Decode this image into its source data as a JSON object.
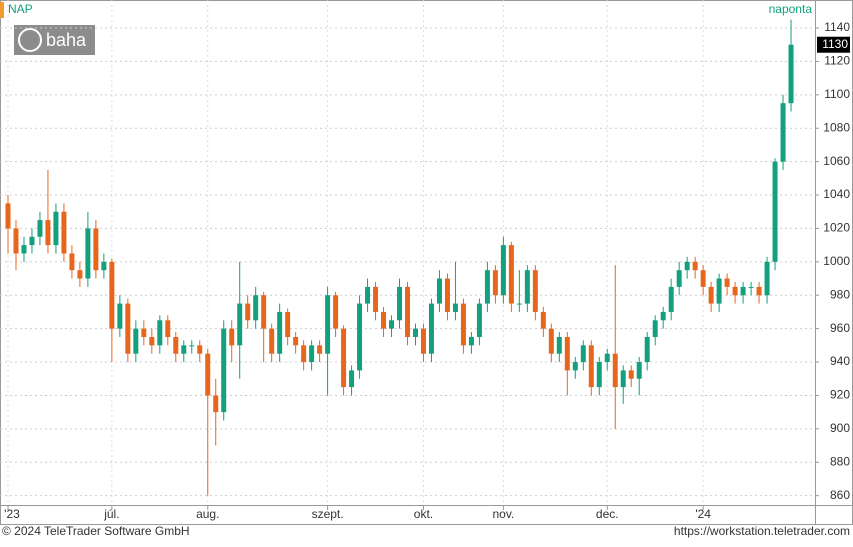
{
  "chart_data": {
    "type": "candlestick",
    "title": "NAP",
    "interval": "naponta",
    "logo": "baha",
    "copyright": "© 2024 TeleTrader Software GmbH",
    "url": "https://workstation.teletrader.com",
    "up_color": "#13a07e",
    "down_color": "#e8661c",
    "grid": true,
    "ylim": [
      855,
      1146
    ],
    "yticks": [
      860,
      880,
      900,
      920,
      940,
      960,
      980,
      1000,
      1020,
      1040,
      1060,
      1080,
      1100,
      1120,
      1140
    ],
    "xlim": [
      -1,
      101
    ],
    "xticks": [
      {
        "value": 0,
        "label": "'23"
      },
      {
        "value": 13,
        "label": "júl."
      },
      {
        "value": 25,
        "label": "aug."
      },
      {
        "value": 40,
        "label": "szept."
      },
      {
        "value": 52,
        "label": "okt."
      },
      {
        "value": 62,
        "label": "nov."
      },
      {
        "value": 75,
        "label": "dec."
      },
      {
        "value": 87,
        "label": "'24"
      }
    ],
    "open": [
      1035,
      1020,
      1005,
      1010,
      1015,
      1025,
      1010,
      1030,
      1005,
      995,
      990,
      1020,
      995,
      1000,
      960,
      975,
      945,
      960,
      955,
      950,
      965,
      955,
      945,
      950,
      950,
      945,
      920,
      910,
      960,
      950,
      975,
      965,
      980,
      960,
      945,
      970,
      955,
      950,
      940,
      950,
      945,
      980,
      960,
      925,
      935,
      975,
      985,
      970,
      960,
      965,
      985,
      955,
      960,
      945,
      975,
      990,
      970,
      975,
      950,
      955,
      975,
      995,
      980,
      1010,
      975,
      975,
      995,
      970,
      960,
      945,
      955,
      935,
      940,
      950,
      925,
      940,
      945,
      925,
      935,
      930,
      940,
      955,
      965,
      970,
      985,
      995,
      1000,
      995,
      985,
      975,
      990,
      985,
      980,
      985,
      985,
      980,
      1000,
      1060,
      1095
    ],
    "high": [
      1040,
      1025,
      1015,
      1020,
      1030,
      1055,
      1035,
      1035,
      1010,
      1000,
      1030,
      1025,
      1005,
      1002,
      980,
      978,
      965,
      965,
      960,
      968,
      968,
      958,
      953,
      953,
      953,
      948,
      930,
      965,
      965,
      1000,
      980,
      985,
      982,
      963,
      975,
      972,
      958,
      953,
      953,
      953,
      985,
      982,
      962,
      938,
      980,
      990,
      988,
      973,
      968,
      990,
      988,
      963,
      963,
      978,
      995,
      993,
      1000,
      978,
      958,
      978,
      1000,
      998,
      1015,
      1012,
      995,
      998,
      998,
      973,
      963,
      958,
      958,
      943,
      953,
      953,
      943,
      948,
      998,
      938,
      938,
      943,
      958,
      968,
      973,
      990,
      1000,
      1003,
      1003,
      998,
      988,
      993,
      993,
      988,
      988,
      988,
      988,
      1003,
      1062,
      1100,
      1145
    ],
    "low": [
      1005,
      995,
      1000,
      1005,
      1010,
      1005,
      1005,
      1000,
      990,
      985,
      985,
      990,
      990,
      940,
      955,
      940,
      940,
      950,
      945,
      945,
      950,
      940,
      940,
      945,
      940,
      860,
      890,
      905,
      940,
      930,
      960,
      960,
      940,
      940,
      940,
      950,
      945,
      935,
      935,
      940,
      920,
      955,
      920,
      920,
      930,
      970,
      965,
      955,
      955,
      960,
      950,
      950,
      940,
      940,
      970,
      965,
      965,
      945,
      945,
      950,
      970,
      975,
      975,
      970,
      970,
      970,
      965,
      955,
      940,
      940,
      920,
      930,
      935,
      920,
      920,
      935,
      900,
      915,
      925,
      920,
      935,
      950,
      960,
      965,
      980,
      990,
      990,
      980,
      970,
      970,
      980,
      975,
      975,
      980,
      975,
      975,
      995,
      1055,
      1090
    ],
    "close": [
      1020,
      1005,
      1010,
      1015,
      1025,
      1010,
      1030,
      1005,
      995,
      990,
      1020,
      995,
      1000,
      960,
      975,
      945,
      960,
      955,
      950,
      965,
      955,
      945,
      950,
      950,
      945,
      920,
      910,
      960,
      950,
      975,
      965,
      980,
      960,
      945,
      970,
      955,
      950,
      940,
      950,
      945,
      980,
      960,
      925,
      935,
      975,
      985,
      970,
      960,
      965,
      985,
      955,
      960,
      945,
      975,
      990,
      970,
      975,
      950,
      955,
      975,
      995,
      980,
      1010,
      975,
      975,
      995,
      970,
      960,
      945,
      955,
      935,
      940,
      950,
      925,
      940,
      945,
      925,
      935,
      930,
      940,
      955,
      965,
      970,
      985,
      995,
      1000,
      995,
      985,
      975,
      990,
      985,
      980,
      985,
      985,
      980,
      1000,
      1060,
      1095,
      1130
    ]
  }
}
